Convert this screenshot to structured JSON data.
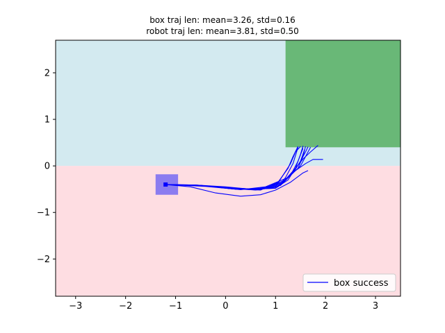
{
  "chart_data": {
    "type": "line",
    "title_lines": [
      "box traj len: mean=3.26, std=0.16",
      "robot traj len: mean=3.81, std=0.50"
    ],
    "xlabel": "",
    "ylabel": "",
    "xlim": [
      -3.4,
      3.5
    ],
    "ylim": [
      -2.8,
      2.7
    ],
    "xticks": [
      -3,
      -2,
      -1,
      0,
      1,
      2,
      3
    ],
    "yticks": [
      -2,
      -1,
      0,
      1,
      2
    ],
    "tick_labels_x": [
      "−3",
      "−2",
      "−1",
      "0",
      "1",
      "2",
      "3"
    ],
    "tick_labels_y": [
      "−2",
      "−1",
      "0",
      "1",
      "2"
    ],
    "grid": false,
    "legend": {
      "placement": "lower-right",
      "entries": [
        {
          "label": "box success",
          "color": "#0000ff"
        }
      ]
    },
    "regions": [
      {
        "name": "upper-region",
        "x": [
          -3.4,
          3.5
        ],
        "y": [
          0,
          2.7
        ],
        "color": "#d3eaf0"
      },
      {
        "name": "lower-region",
        "x": [
          -3.4,
          3.5
        ],
        "y": [
          -2.8,
          0
        ],
        "color": "#fedde2"
      },
      {
        "name": "goal-region",
        "x": [
          1.2,
          3.5
        ],
        "y": [
          0.4,
          2.7
        ],
        "color": "#69b877"
      },
      {
        "name": "box-start",
        "x": [
          -1.4,
          -0.95
        ],
        "y": [
          -0.62,
          -0.18
        ],
        "color": "#8b7cf0"
      }
    ],
    "start_point": {
      "x": -1.2,
      "y": -0.4
    },
    "series_color": "#0000ff",
    "series": [
      {
        "x": [
          -1.2,
          -0.5,
          0.2,
          0.6,
          1.0,
          1.15,
          1.3,
          1.4,
          1.5
        ],
        "y": [
          -0.4,
          -0.42,
          -0.48,
          -0.5,
          -0.45,
          -0.2,
          0.05,
          0.3,
          0.42
        ]
      },
      {
        "x": [
          -1.2,
          -0.4,
          0.3,
          0.7,
          1.05,
          1.25,
          1.35,
          1.45
        ],
        "y": [
          -0.4,
          -0.43,
          -0.5,
          -0.52,
          -0.35,
          -0.05,
          0.2,
          0.42
        ]
      },
      {
        "x": [
          -1.2,
          -0.6,
          0.0,
          0.5,
          1.0,
          1.25,
          1.4,
          1.5,
          1.55
        ],
        "y": [
          -0.4,
          -0.41,
          -0.46,
          -0.5,
          -0.48,
          -0.3,
          -0.05,
          0.25,
          0.43
        ]
      },
      {
        "x": [
          -1.2,
          -0.5,
          0.1,
          0.6,
          1.1,
          1.35,
          1.5,
          1.6,
          1.65
        ],
        "y": [
          -0.4,
          -0.42,
          -0.49,
          -0.51,
          -0.42,
          -0.15,
          0.1,
          0.3,
          0.41
        ]
      },
      {
        "x": [
          -1.2,
          -0.4,
          0.2,
          0.7,
          1.15,
          1.4,
          1.55,
          1.7,
          1.85
        ],
        "y": [
          -0.4,
          -0.44,
          -0.5,
          -0.5,
          -0.35,
          -0.05,
          0.15,
          0.3,
          0.44
        ]
      },
      {
        "x": [
          -1.2,
          -0.6,
          0.0,
          0.6,
          1.1,
          1.4,
          1.6,
          1.75,
          1.95
        ],
        "y": [
          -0.4,
          -0.41,
          -0.47,
          -0.5,
          -0.38,
          -0.1,
          0.05,
          0.14,
          0.14
        ]
      },
      {
        "x": [
          -1.2,
          -0.5,
          0.2,
          0.8,
          1.2,
          1.45,
          1.55,
          1.6
        ],
        "y": [
          -0.4,
          -0.42,
          -0.5,
          -0.48,
          -0.3,
          -0.05,
          0.2,
          0.42
        ]
      },
      {
        "x": [
          -1.2,
          -0.4,
          0.3,
          0.8,
          1.25,
          1.5,
          1.6,
          1.7
        ],
        "y": [
          -0.4,
          -0.43,
          -0.51,
          -0.45,
          -0.25,
          0.0,
          0.2,
          0.4
        ]
      },
      {
        "x": [
          -1.2,
          -0.5,
          0.1,
          0.6,
          1.05,
          1.2,
          1.35,
          1.45
        ],
        "y": [
          -0.4,
          -0.42,
          -0.48,
          -0.52,
          -0.45,
          -0.25,
          0.05,
          0.4
        ]
      },
      {
        "x": [
          -1.2,
          -0.6,
          0.0,
          0.5,
          1.0,
          1.3,
          1.45,
          1.55
        ],
        "y": [
          -0.4,
          -0.41,
          -0.45,
          -0.5,
          -0.48,
          -0.2,
          0.1,
          0.38
        ]
      },
      {
        "x": [
          -1.2,
          -0.7,
          -0.2,
          0.3,
          0.7,
          1.0,
          1.3,
          1.55,
          1.65
        ],
        "y": [
          -0.4,
          -0.45,
          -0.58,
          -0.65,
          -0.62,
          -0.52,
          -0.35,
          -0.15,
          -0.1
        ]
      },
      {
        "x": [
          -1.2,
          -0.5,
          0.1,
          0.6,
          1.1,
          1.35,
          1.5,
          1.58
        ],
        "y": [
          -0.4,
          -0.42,
          -0.49,
          -0.5,
          -0.4,
          -0.15,
          0.1,
          0.35
        ]
      }
    ]
  }
}
